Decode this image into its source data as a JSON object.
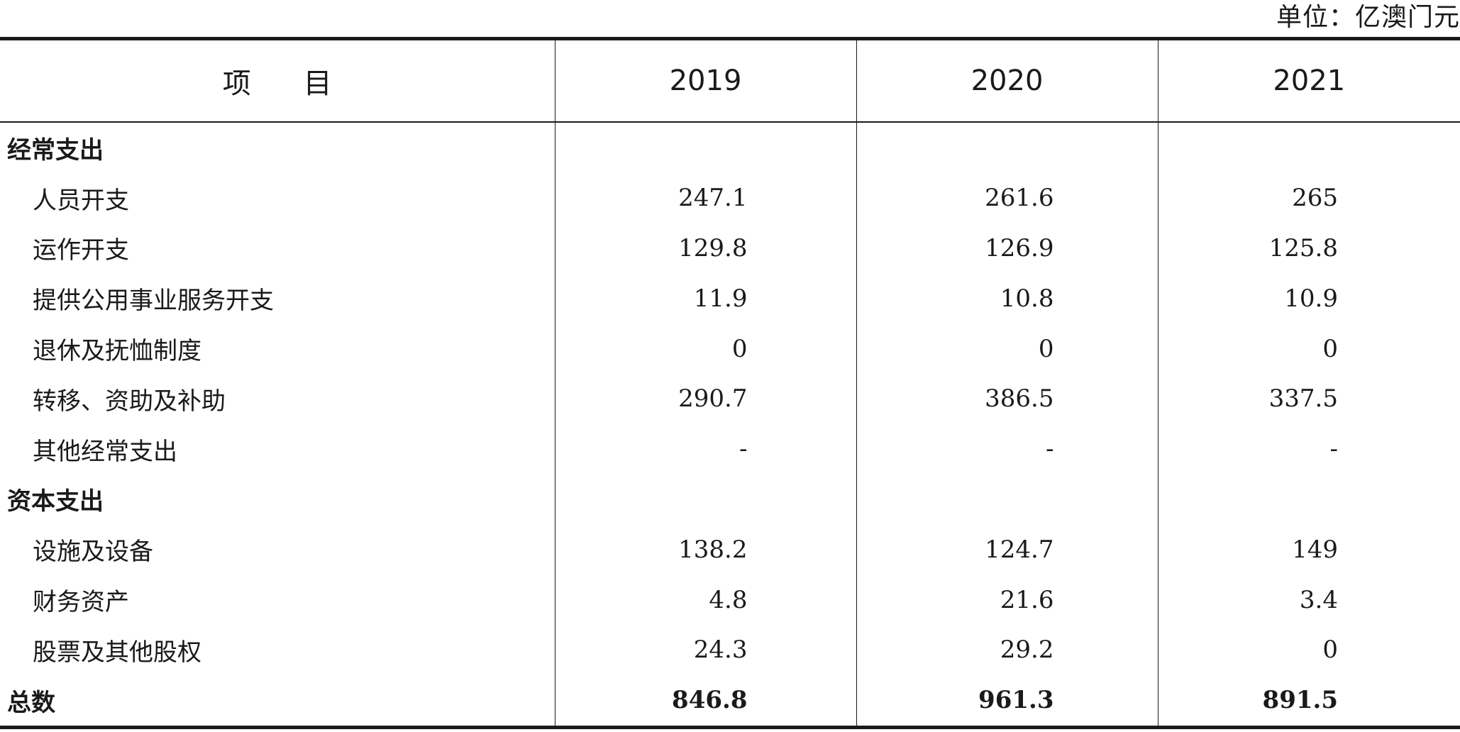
{
  "unit": "单位：亿澳门元",
  "headers": {
    "item": "项目",
    "years": [
      "2019",
      "2020",
      "2021"
    ]
  },
  "rows": [
    {
      "kind": "section",
      "label": "经常支出",
      "values": [
        "",
        "",
        ""
      ]
    },
    {
      "kind": "sub",
      "label": "人员开支",
      "values": [
        "247.1",
        "261.6",
        "265"
      ]
    },
    {
      "kind": "sub",
      "label": "运作开支",
      "values": [
        "129.8",
        "126.9",
        "125.8"
      ]
    },
    {
      "kind": "sub",
      "label": "提供公用事业服务开支",
      "values": [
        "11.9",
        "10.8",
        "10.9"
      ]
    },
    {
      "kind": "sub",
      "label": "退休及抚恤制度",
      "values": [
        "0",
        "0",
        "0"
      ]
    },
    {
      "kind": "sub",
      "label": "转移、资助及补助",
      "values": [
        "290.7",
        "386.5",
        "337.5"
      ]
    },
    {
      "kind": "sub",
      "label": "其他经常支出",
      "values": [
        "-",
        "-",
        "-"
      ]
    },
    {
      "kind": "section",
      "label": "资本支出",
      "values": [
        "",
        "",
        ""
      ]
    },
    {
      "kind": "sub",
      "label": "设施及设备",
      "values": [
        "138.2",
        "124.7",
        "149"
      ]
    },
    {
      "kind": "sub",
      "label": "财务资产",
      "values": [
        "4.8",
        "21.6",
        "3.4"
      ]
    },
    {
      "kind": "sub",
      "label": "股票及其他股权",
      "values": [
        "24.3",
        "29.2",
        "0"
      ]
    },
    {
      "kind": "total",
      "label": "总数",
      "values": [
        "846.8",
        "961.3",
        "891.5"
      ]
    }
  ]
}
